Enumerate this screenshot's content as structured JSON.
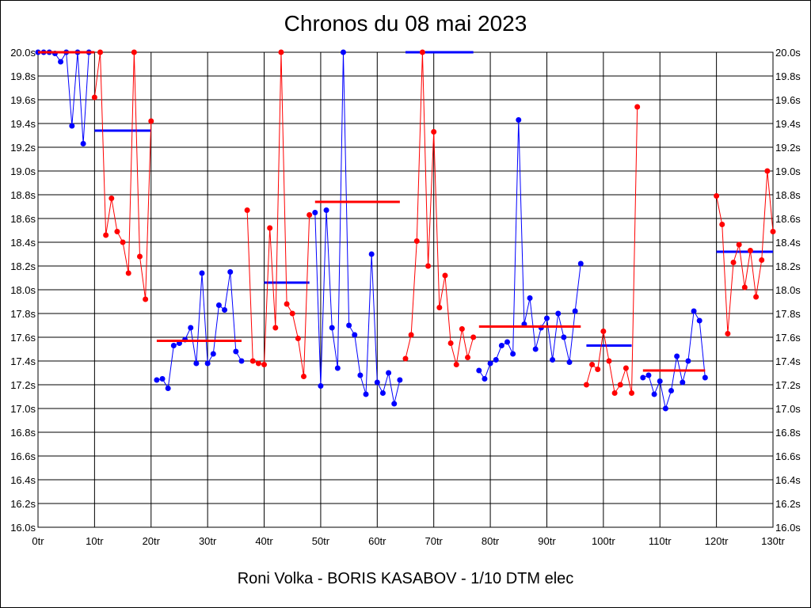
{
  "chart_data": {
    "type": "line",
    "title": "Chronos du 08 mai 2023",
    "footer": "Roni Volka - BORIS KASABOV - 1/10 DTM elec",
    "xlim": [
      0,
      130
    ],
    "ylim": [
      16.0,
      20.0
    ],
    "x_ticks": [
      "0tr",
      "10tr",
      "20tr",
      "30tr",
      "40tr",
      "50tr",
      "60tr",
      "70tr",
      "80tr",
      "90tr",
      "100tr",
      "110tr",
      "120tr",
      "130tr"
    ],
    "y_ticks": [
      "16.0s",
      "16.2s",
      "16.4s",
      "16.6s",
      "16.8s",
      "17.0s",
      "17.2s",
      "17.4s",
      "17.6s",
      "17.8s",
      "18.0s",
      "18.2s",
      "18.4s",
      "18.6s",
      "18.8s",
      "19.0s",
      "19.2s",
      "19.4s",
      "19.6s",
      "19.8s",
      "20.0s"
    ],
    "grid": true,
    "colors": {
      "blue": "#0000ff",
      "red": "#ff0000",
      "grid": "#000000"
    },
    "series": [
      {
        "color": "#0000ff",
        "x": [
          0,
          1,
          2,
          3,
          4,
          5,
          6,
          7,
          8,
          9
        ],
        "y": [
          20.0,
          20.0,
          20.0,
          19.99,
          19.92,
          20.0,
          19.38,
          20.0,
          19.23,
          20.0
        ],
        "mean": {
          "x": [
            10,
            20
          ],
          "y": 19.34
        }
      },
      {
        "color": "#ff0000",
        "x": [
          10,
          11,
          12,
          13,
          14,
          15,
          16,
          17,
          18,
          19,
          20
        ],
        "y": [
          19.62,
          20.0,
          18.46,
          18.77,
          18.49,
          18.4,
          18.14,
          20.0,
          18.28,
          17.92,
          19.42
        ],
        "mean": {
          "x": [
            0,
            10
          ],
          "y": 20.0
        }
      },
      {
        "color": "#0000ff",
        "x": [
          21,
          22,
          23,
          24,
          25,
          26,
          27,
          28,
          29,
          30,
          31,
          32,
          33,
          34,
          35,
          36
        ],
        "y": [
          17.24,
          17.25,
          17.17,
          17.53,
          17.55,
          17.58,
          17.68,
          17.38,
          18.14,
          17.38,
          17.46,
          17.87,
          17.83,
          18.15,
          17.48,
          17.4
        ],
        "mean": {
          "x": [
            40,
            48
          ],
          "y": 18.06
        }
      },
      {
        "color": "#ff0000",
        "x": [
          37,
          38,
          39,
          40,
          41,
          42,
          43,
          44,
          45,
          46,
          47,
          48
        ],
        "y": [
          18.67,
          17.4,
          17.38,
          17.37,
          18.52,
          17.68,
          20.0,
          17.88,
          17.8,
          17.59,
          17.27,
          18.63
        ],
        "mean": {
          "x": [
            21,
            36
          ],
          "y": 17.57
        }
      },
      {
        "color": "#0000ff",
        "x": [
          49,
          50,
          51,
          52,
          53,
          54,
          55,
          56,
          57,
          58,
          59,
          60,
          61,
          62,
          63,
          64
        ],
        "y": [
          18.65,
          17.19,
          18.67,
          17.68,
          17.34,
          20.0,
          17.7,
          17.62,
          17.28,
          17.12,
          18.3,
          17.22,
          17.13,
          17.3,
          17.04,
          17.24
        ],
        "mean": {
          "x": [
            65,
            77
          ],
          "y": 20.0
        }
      },
      {
        "color": "#ff0000",
        "x": [
          65,
          66,
          67,
          68,
          69,
          70,
          71,
          72,
          73,
          74,
          75,
          76,
          77
        ],
        "y": [
          17.42,
          17.62,
          18.41,
          20.0,
          18.2,
          19.33,
          17.85,
          18.12,
          17.55,
          17.37,
          17.67,
          17.43,
          17.6
        ],
        "mean": {
          "x": [
            49,
            64
          ],
          "y": 18.74
        }
      },
      {
        "color": "#0000ff",
        "x": [
          78,
          79,
          80,
          81,
          82,
          83,
          84,
          85,
          86,
          87,
          88,
          89,
          90,
          91,
          92,
          93,
          94,
          95,
          96
        ],
        "y": [
          17.32,
          17.25,
          17.38,
          17.41,
          17.53,
          17.56,
          17.46,
          19.43,
          17.71,
          17.93,
          17.5,
          17.68,
          17.76,
          17.41,
          17.8,
          17.6,
          17.39,
          17.82,
          18.22
        ],
        "mean": {
          "x": [
            97,
            105
          ],
          "y": 17.53
        }
      },
      {
        "color": "#ff0000",
        "x": [
          97,
          98,
          99,
          100,
          101,
          102,
          103,
          104,
          105,
          106
        ],
        "y": [
          17.2,
          17.37,
          17.33,
          17.65,
          17.4,
          17.13,
          17.2,
          17.34,
          17.13,
          19.54
        ],
        "mean": {
          "x": [
            78,
            96
          ],
          "y": 17.69
        }
      },
      {
        "color": "#0000ff",
        "x": [
          107,
          108,
          109,
          110,
          111,
          112,
          113,
          114,
          115,
          116,
          117,
          118
        ],
        "y": [
          17.26,
          17.28,
          17.12,
          17.23,
          17.0,
          17.15,
          17.44,
          17.22,
          17.4,
          17.82,
          17.74,
          17.26
        ],
        "mean": {
          "x": [
            120,
            130
          ],
          "y": 18.32
        }
      },
      {
        "color": "#ff0000",
        "x": [
          120,
          121,
          122,
          123,
          124,
          125,
          126,
          127,
          128,
          129,
          130
        ],
        "y": [
          18.79,
          18.55,
          17.63,
          18.23,
          18.38,
          18.02,
          18.33,
          17.94,
          18.25,
          19.0,
          18.49
        ],
        "mean": {
          "x": [
            107,
            118
          ],
          "y": 17.32
        }
      }
    ]
  }
}
